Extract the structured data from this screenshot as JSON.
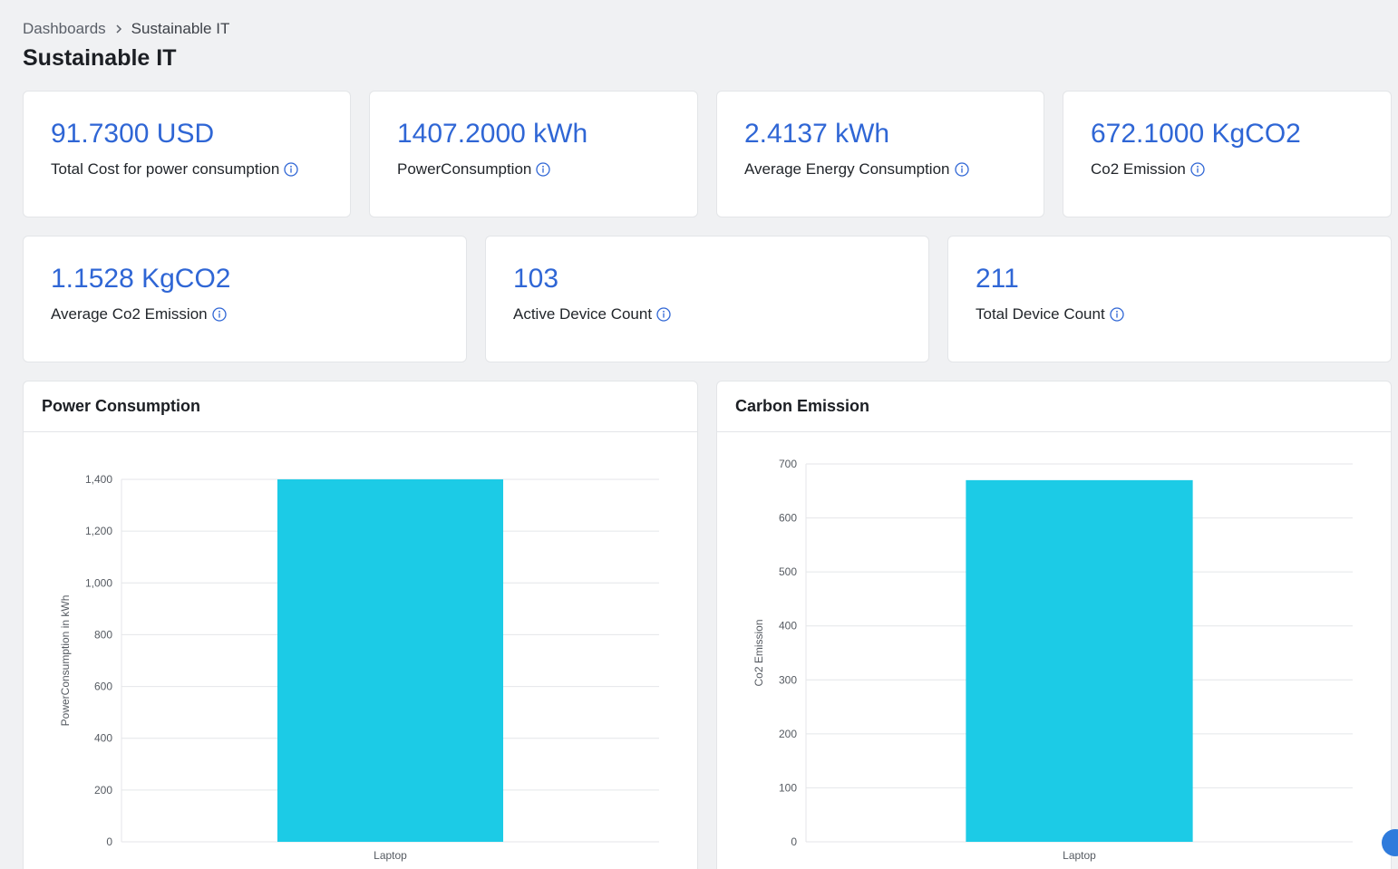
{
  "breadcrumb": {
    "parent": "Dashboards",
    "current": "Sustainable IT"
  },
  "page": {
    "title": "Sustainable IT"
  },
  "kpis": [
    {
      "value": "91.7300 USD",
      "label": "Total Cost for power consumption"
    },
    {
      "value": "1407.2000 kWh",
      "label": "PowerConsumption"
    },
    {
      "value": "2.4137 kWh",
      "label": "Average Energy Consumption"
    },
    {
      "value": "672.1000 KgCO2",
      "label": "Co2 Emission"
    },
    {
      "value": "1.1528 KgCO2",
      "label": "Average Co2 Emission"
    },
    {
      "value": "103",
      "label": "Active Device Count"
    },
    {
      "value": "211",
      "label": "Total Device Count"
    }
  ],
  "icons": {
    "info": "info-circle-icon",
    "breadcrumb_separator": "chevron-right-icon"
  },
  "colors": {
    "accent": "#2f66d5",
    "bar": "#1ccbe6",
    "background": "#f0f1f3"
  },
  "charts": {
    "power": {
      "title": "Power Consumption"
    },
    "carbon": {
      "title": "Carbon Emission"
    }
  },
  "chart_data": [
    {
      "type": "bar",
      "title": "Power Consumption",
      "categories": [
        "Laptop"
      ],
      "values": [
        1400
      ],
      "xlabel": "",
      "ylabel": "PowerConsumption in kWh",
      "ylim": [
        0,
        1400
      ],
      "yticks": [
        0,
        200,
        400,
        600,
        800,
        1000,
        1200,
        1400
      ],
      "ytick_labels": [
        "0",
        "200",
        "400",
        "600",
        "800",
        "1,000",
        "1,200",
        "1,400"
      ],
      "grid": true
    },
    {
      "type": "bar",
      "title": "Carbon Emission",
      "categories": [
        "Laptop"
      ],
      "values": [
        670
      ],
      "xlabel": "",
      "ylabel": "Co2 Emission",
      "ylim": [
        0,
        700
      ],
      "yticks": [
        0,
        100,
        200,
        300,
        400,
        500,
        600,
        700
      ],
      "ytick_labels": [
        "0",
        "100",
        "200",
        "300",
        "400",
        "500",
        "600",
        "700"
      ],
      "grid": true
    }
  ]
}
